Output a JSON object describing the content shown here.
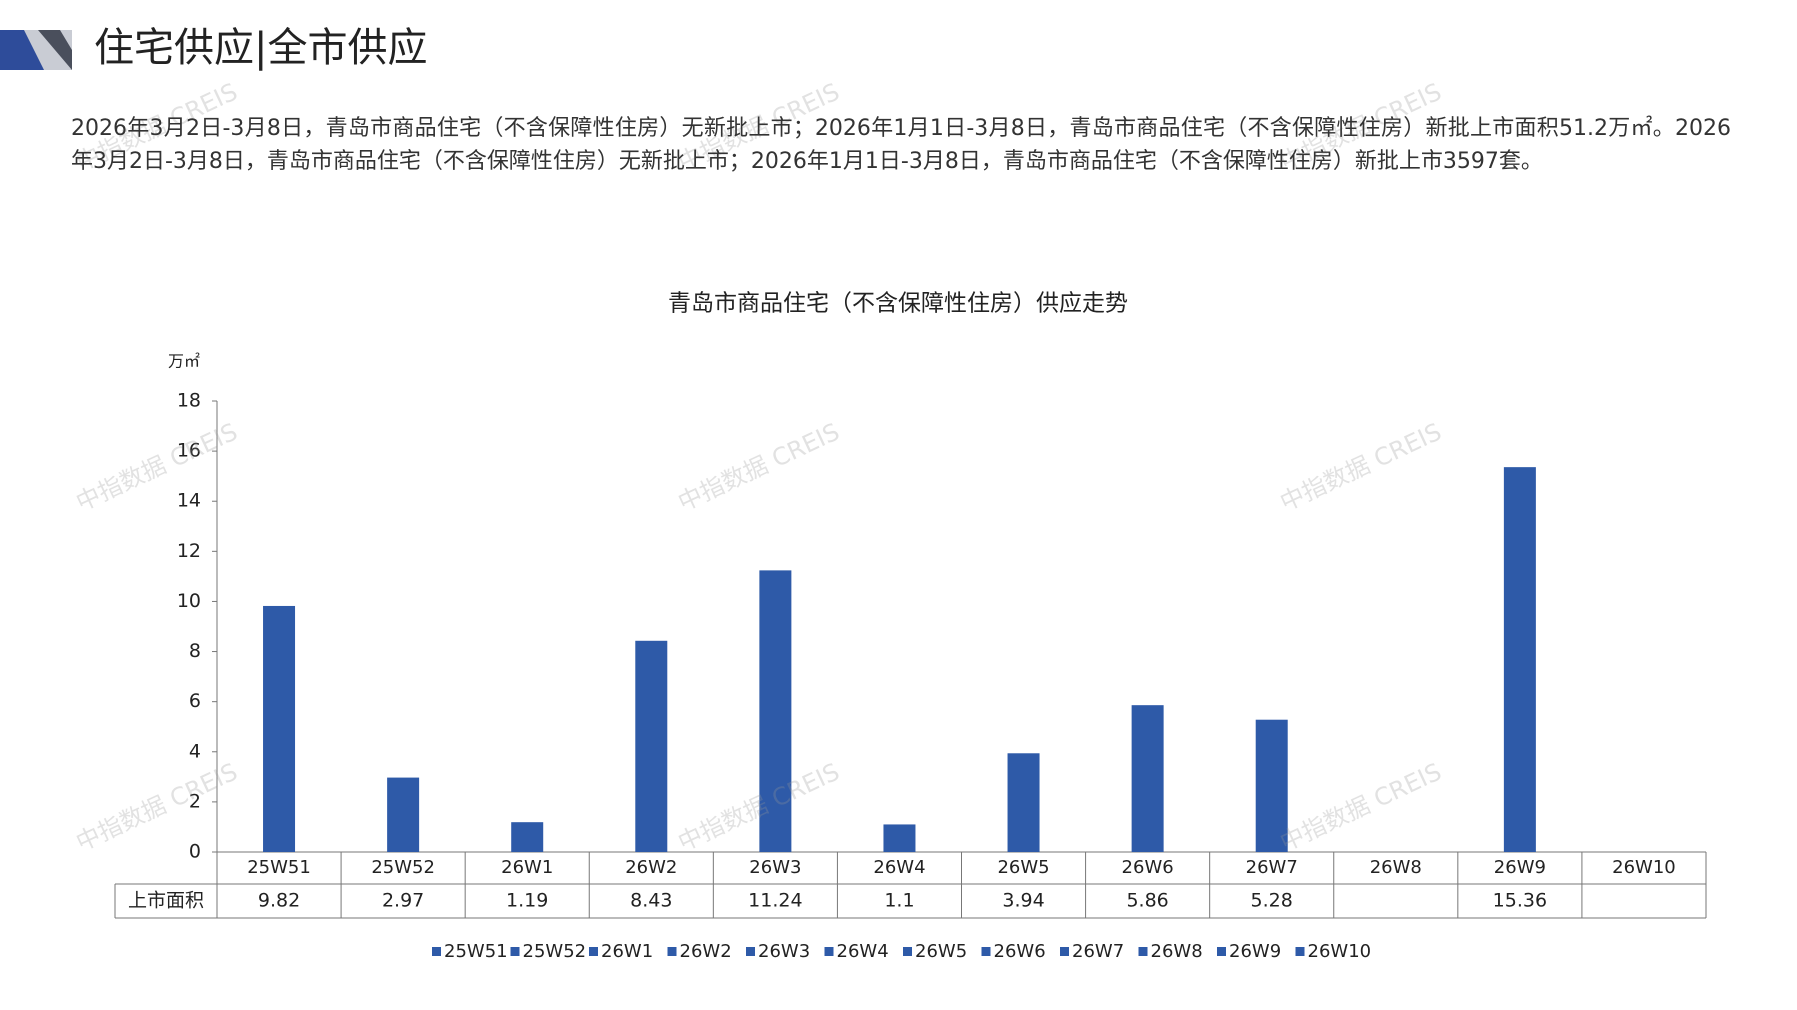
{
  "header": {
    "title": "住宅供应|全市供应"
  },
  "summary": "2026年3月2日-3月8日，青岛市商品住宅（不含保障性住房）无新批上市；2026年1月1日-3月8日，青岛市商品住宅（不含保障性住房）新批上市面积51.2万㎡。2026年3月2日-3月8日，青岛市商品住宅（不含保障性住房）无新批上市；2026年1月1日-3月8日，青岛市商品住宅（不含保障性住房）新批上市3597套。",
  "watermark": "中指数据 CREIS",
  "chart_data": {
    "type": "bar",
    "title": "青岛市商品住宅（不含保障性住房）供应走势",
    "y_unit": "万㎡",
    "categories": [
      "25W51",
      "25W52",
      "26W1",
      "26W2",
      "26W3",
      "26W4",
      "26W5",
      "26W6",
      "26W7",
      "26W8",
      "26W9",
      "26W10"
    ],
    "series": [
      {
        "name": "上市面积",
        "color": "#2e5aa8",
        "values": [
          9.82,
          2.97,
          1.19,
          8.43,
          11.24,
          1.1,
          3.94,
          5.86,
          5.28,
          null,
          15.36,
          null
        ]
      }
    ],
    "ylim": [
      0,
      18
    ],
    "yticks": [
      0,
      2,
      4,
      6,
      8,
      10,
      12,
      14,
      16,
      18
    ]
  }
}
